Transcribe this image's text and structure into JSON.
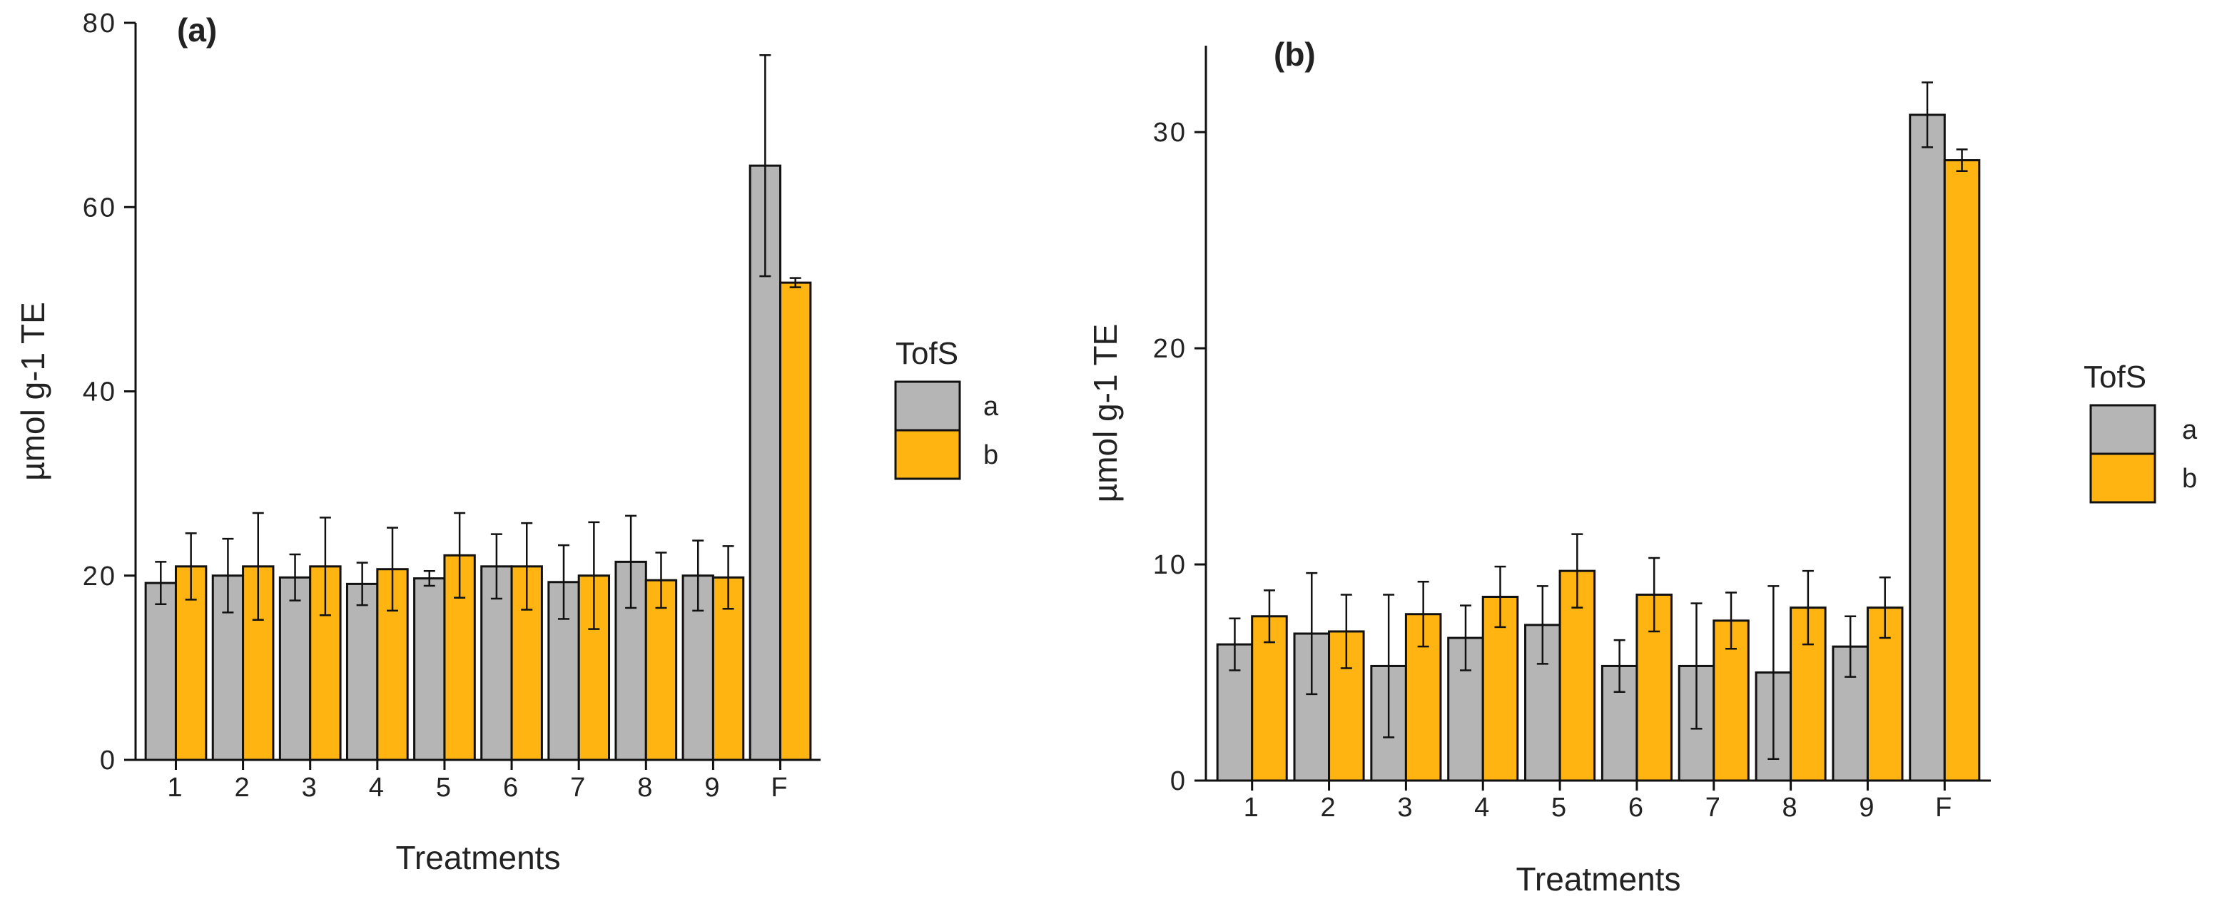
{
  "colors": {
    "a": "#b5b5b5",
    "b": "#ffb412",
    "outline": "#111111",
    "axis": "#111111"
  },
  "chart_data": [
    {
      "type": "bar",
      "panel_label": "(a)",
      "categories": [
        "1",
        "2",
        "3",
        "4",
        "5",
        "6",
        "7",
        "8",
        "9",
        "F"
      ],
      "xlabel": "Treatments",
      "ylabel": "µmol g-1 TE",
      "ylim": [
        0,
        80
      ],
      "yticks": [
        "0",
        "20",
        "40",
        "60",
        "80"
      ],
      "legend": {
        "title": "TofS",
        "position": "right"
      },
      "grid": false,
      "series": [
        {
          "name": "a",
          "values": [
            19.2,
            20.0,
            19.8,
            19.1,
            19.7,
            21.0,
            19.3,
            21.5,
            20.0,
            64.5
          ],
          "errors": [
            2.3,
            4.0,
            2.5,
            2.3,
            0.8,
            3.5,
            4.0,
            5.0,
            3.8,
            12.0
          ]
        },
        {
          "name": "b",
          "values": [
            21.0,
            21.0,
            21.0,
            20.7,
            22.2,
            21.0,
            20.0,
            19.5,
            19.8,
            51.8
          ],
          "errors": [
            3.6,
            5.8,
            5.3,
            4.5,
            4.6,
            4.7,
            5.8,
            3.0,
            3.4,
            0.5
          ]
        }
      ]
    },
    {
      "type": "bar",
      "panel_label": "(b)",
      "categories": [
        "1",
        "2",
        "3",
        "4",
        "5",
        "6",
        "7",
        "8",
        "9",
        "F"
      ],
      "xlabel": "Treatments",
      "ylabel": "µmol g-1 TE",
      "ylim": [
        0,
        34
      ],
      "yticks": [
        "0",
        "10",
        "20",
        "30"
      ],
      "legend": {
        "title": "TofS",
        "position": "right"
      },
      "grid": false,
      "series": [
        {
          "name": "a",
          "values": [
            6.3,
            6.8,
            5.3,
            6.6,
            7.2,
            5.3,
            5.3,
            5.0,
            6.2,
            30.8
          ],
          "errors": [
            1.2,
            2.8,
            3.3,
            1.5,
            1.8,
            1.2,
            2.9,
            4.0,
            1.4,
            1.5
          ]
        },
        {
          "name": "b",
          "values": [
            7.6,
            6.9,
            7.7,
            8.5,
            9.7,
            8.6,
            7.4,
            8.0,
            8.0,
            28.7
          ],
          "errors": [
            1.2,
            1.7,
            1.5,
            1.4,
            1.7,
            1.7,
            1.3,
            1.7,
            1.4,
            0.5
          ]
        }
      ]
    }
  ]
}
